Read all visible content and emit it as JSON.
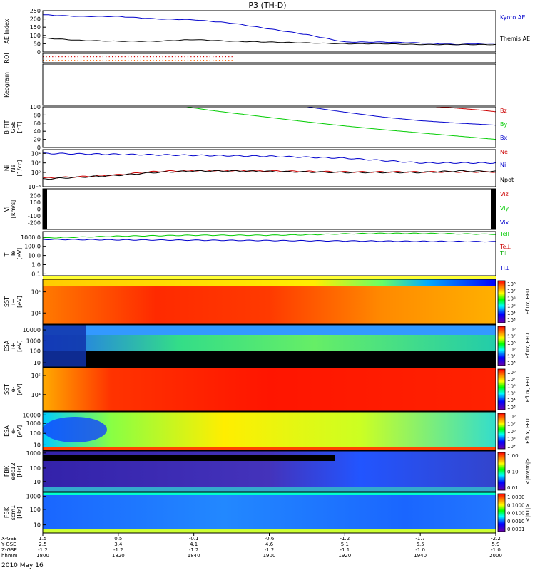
{
  "title": "P3 (TH-D)",
  "date_label": "2010 May 16",
  "chart_data": [
    {
      "type": "line",
      "name": "ae",
      "ylabel": [
        "AE Index"
      ],
      "ylim": [
        0,
        250
      ],
      "yticks": [
        "0",
        "50",
        "100",
        "150",
        "200",
        "250"
      ],
      "ytick_values": [
        0,
        50,
        100,
        150,
        200,
        250
      ],
      "series": [
        {
          "name": "Kyoto AE",
          "color": "#0000cc",
          "x": [
            0,
            5,
            10,
            15,
            20,
            25,
            30,
            35,
            40,
            45,
            50,
            55,
            60
          ],
          "values": [
            225,
            215,
            215,
            200,
            195,
            175,
            140,
            105,
            60,
            60,
            55,
            45,
            55
          ]
        },
        {
          "name": "Themis AE",
          "color": "#000000",
          "x": [
            0,
            5,
            10,
            15,
            20,
            25,
            30,
            35,
            40,
            45,
            50,
            55,
            60
          ],
          "values": [
            85,
            70,
            65,
            65,
            75,
            65,
            60,
            55,
            50,
            50,
            45,
            45,
            45
          ]
        }
      ]
    },
    {
      "type": "scatter",
      "name": "roi",
      "ylabel": [
        "ROI"
      ],
      "rows": [
        {
          "color": "#cc0000",
          "x_end": 25
        },
        {
          "color": "#ff6600",
          "x_end": 25
        }
      ]
    },
    {
      "type": "line",
      "name": "keogram",
      "ylabel": [
        "Keogram"
      ],
      "series": []
    },
    {
      "type": "line",
      "name": "bfit",
      "ylabel": [
        "B FIT",
        "GSE",
        "[nT]"
      ],
      "ylim": [
        0,
        100
      ],
      "yticks": [
        "0",
        "20",
        "40",
        "60",
        "80",
        "100"
      ],
      "ytick_values": [
        0,
        20,
        40,
        60,
        80,
        100
      ],
      "series": [
        {
          "name": "Bz",
          "color": "#cc0000",
          "x": [
            52,
            54,
            56,
            58,
            60
          ],
          "values": [
            100,
            98,
            95,
            92,
            88
          ]
        },
        {
          "name": "By",
          "color": "#00cc00",
          "x": [
            19,
            22,
            25,
            30,
            35,
            40,
            45,
            50,
            55,
            60
          ],
          "values": [
            100,
            92,
            85,
            74,
            63,
            53,
            44,
            36,
            28,
            20
          ]
        },
        {
          "name": "Bx",
          "color": "#0000cc",
          "x": [
            35,
            40,
            45,
            50,
            55,
            60
          ],
          "values": [
            100,
            87,
            75,
            66,
            60,
            55
          ]
        }
      ]
    },
    {
      "type": "line",
      "name": "density",
      "ylabel": [
        "Ni",
        "Ne",
        "[1/cc]"
      ],
      "yscale": "log",
      "ylim": [
        -3,
        4.8
      ],
      "yticks": [
        "10⁻³",
        "10⁰",
        "10²",
        "10⁴"
      ],
      "ytick_values": [
        -3,
        0,
        2,
        4
      ],
      "series": [
        {
          "name": "Ne",
          "color": "#cc0000",
          "x": [
            0,
            5,
            10,
            15,
            20,
            25,
            30,
            35,
            40,
            45,
            50,
            55,
            60
          ],
          "values": [
            -1.2,
            -0.9,
            -0.5,
            0.2,
            0.4,
            0.4,
            0.3,
            0.2,
            0.1,
            0.1,
            0.1,
            0.1,
            0.1
          ]
        },
        {
          "name": "Ni",
          "color": "#0000cc",
          "x": [
            0,
            5,
            10,
            15,
            20,
            25,
            30,
            35,
            40,
            45,
            50,
            55,
            60
          ],
          "values": [
            4.0,
            3.9,
            3.8,
            3.7,
            3.6,
            3.5,
            3.4,
            3.2,
            3.0,
            2.5,
            2.0,
            2.0,
            2.0
          ]
        },
        {
          "name": "Npot",
          "color": "#000000",
          "x": [
            0,
            5,
            10,
            15,
            20,
            25,
            30,
            35,
            40,
            45,
            50,
            55,
            60
          ],
          "values": [
            -1.4,
            -1.0,
            -0.6,
            0.0,
            0.3,
            0.3,
            0.2,
            0.1,
            0.0,
            0.0,
            0.0,
            0.3,
            0.2
          ]
        }
      ]
    },
    {
      "type": "line",
      "name": "velocity",
      "ylabel": [
        "Vi",
        "[km/s]"
      ],
      "ylim": [
        -300,
        300
      ],
      "yticks": [
        "-200",
        "-100",
        "0",
        "100",
        "200"
      ],
      "ytick_values": [
        -200,
        -100,
        0,
        100,
        200
      ],
      "series": [
        {
          "name": "Viz",
          "color": "#cc0000",
          "x": [],
          "values": []
        },
        {
          "name": "Viy",
          "color": "#00cc00",
          "x": [],
          "values": []
        },
        {
          "name": "Vix",
          "color": "#0000cc",
          "x": [],
          "values": []
        }
      ]
    },
    {
      "type": "line",
      "name": "temperature",
      "ylabel": [
        "Ti",
        "Te",
        "[eV]"
      ],
      "yscale": "log",
      "ylim": [
        -1.2,
        3.6
      ],
      "yticks": [
        "0.1",
        "1.0",
        "10.0",
        "100.0",
        "1000.0"
      ],
      "ytick_values": [
        -1,
        0,
        1,
        2,
        3
      ],
      "series": [
        {
          "name": "Tell",
          "color": "#00cc00",
          "x": [
            0,
            5,
            10,
            15,
            20,
            25,
            30,
            35,
            40,
            45,
            50,
            55,
            60
          ],
          "values": [
            2.9,
            3.0,
            3.1,
            3.15,
            3.2,
            3.2,
            3.2,
            3.25,
            3.35,
            3.4,
            3.4,
            3.35,
            3.3
          ]
        },
        {
          "name": "Te⊥",
          "color": "#cc0000",
          "x": [],
          "values": []
        },
        {
          "name": "Til",
          "color": "#00aa00",
          "x": [],
          "values": []
        },
        {
          "name": "Ti⊥",
          "color": "#0000cc",
          "x": [
            0,
            5,
            10,
            15,
            20,
            25,
            30,
            35,
            40,
            45,
            50,
            55,
            60
          ],
          "values": [
            2.75,
            2.72,
            2.7,
            2.68,
            2.66,
            2.64,
            2.62,
            2.6,
            2.58,
            2.56,
            2.54,
            2.52,
            2.5
          ]
        }
      ]
    },
    {
      "type": "heatmap",
      "name": "sst_ion",
      "ylabel": [
        "SST",
        "i+",
        "[eV]"
      ],
      "yticks": [
        "10⁴",
        "10⁵"
      ],
      "zlabel": "Eflux, EFU",
      "ztick_labels": [
        "10³",
        "10⁴",
        "10⁵",
        "10⁶",
        "10⁷",
        "10⁸"
      ]
    },
    {
      "type": "heatmap",
      "name": "esa_ion",
      "ylabel": [
        "ESA",
        "i+",
        "[eV]"
      ],
      "yticks": [
        "10",
        "100",
        "1000",
        "10000"
      ],
      "zlabel": "Eflux, EFU",
      "ztick_labels": [
        "10³",
        "10⁴",
        "10⁵",
        "10⁶",
        "10⁷",
        "10⁸"
      ]
    },
    {
      "type": "heatmap",
      "name": "sst_elec",
      "ylabel": [
        "SST",
        "e-",
        "[eV]"
      ],
      "yticks": [
        "10⁴",
        "10⁵"
      ],
      "zlabel": "Eflux, EFU",
      "ztick_labels": [
        "10³",
        "10⁴",
        "10⁵",
        "10⁶",
        "10⁷",
        "10⁸"
      ]
    },
    {
      "type": "heatmap",
      "name": "esa_elec",
      "ylabel": [
        "ESA",
        "e-",
        "[eV]"
      ],
      "yticks": [
        "10",
        "100",
        "1000",
        "10000"
      ],
      "zlabel": "Eflux, EFU",
      "ztick_labels": [
        "10⁴",
        "10⁵",
        "10⁶",
        "10⁷",
        "10⁸"
      ]
    },
    {
      "type": "heatmap",
      "name": "fbk_e",
      "ylabel": [
        "FBK",
        "edc12",
        "[Hz]"
      ],
      "yticks": [
        "10",
        "100",
        "1000"
      ],
      "zlabel": "<|mV/m|>",
      "ztick_labels": [
        "0.01",
        "0.10",
        "1.00"
      ]
    },
    {
      "type": "heatmap",
      "name": "fbk_b",
      "ylabel": [
        "FBK",
        "scm1",
        "[Hz]"
      ],
      "yticks": [
        "10",
        "100",
        "1000"
      ],
      "zlabel": "<|nT|>",
      "ztick_labels": [
        "0.0001",
        "0.0010",
        "0.0100",
        "0.1000",
        "1.0000"
      ]
    }
  ],
  "x_axis": {
    "row_labels": [
      "X-GSE",
      "Y-GSE",
      "Z-GSE",
      "hhmm"
    ],
    "ticks": [
      {
        "x": 0,
        "values": [
          "1.5",
          "2.5",
          "-1.2",
          "1800"
        ]
      },
      {
        "x": 10,
        "values": [
          "0.5",
          "3.4",
          "-1.2",
          "1820"
        ]
      },
      {
        "x": 20,
        "values": [
          "-0.1",
          "4.1",
          "-1.2",
          "1840"
        ]
      },
      {
        "x": 30,
        "values": [
          "-0.6",
          "4.6",
          "-1.2",
          "1900"
        ]
      },
      {
        "x": 40,
        "values": [
          "-1.2",
          "5.1",
          "-1.1",
          "1920"
        ]
      },
      {
        "x": 50,
        "values": [
          "-1.7",
          "5.5",
          "-1.0",
          "1940"
        ]
      },
      {
        "x": 60,
        "values": [
          "-2.2",
          "5.9",
          "-1.0",
          "2000"
        ]
      }
    ]
  }
}
